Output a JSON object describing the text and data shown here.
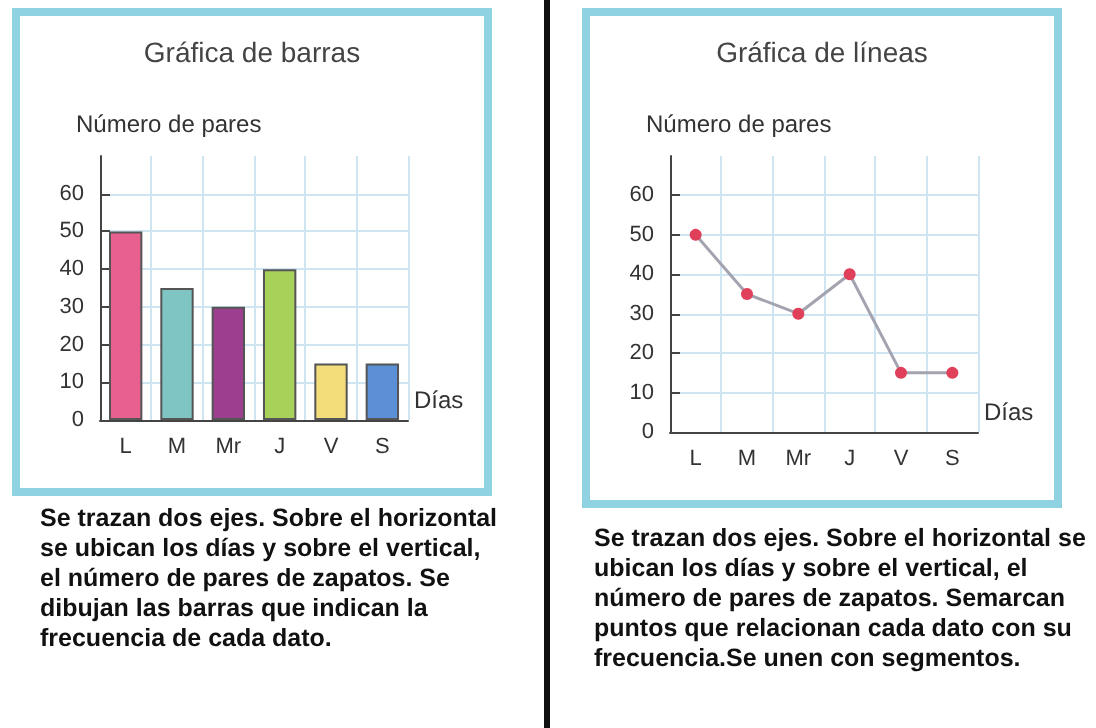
{
  "chart_data": [
    {
      "type": "bar",
      "title": "Gráfica de barras",
      "xlabel": "Días",
      "ylabel": "Número de pares",
      "categories": [
        "L",
        "M",
        "Mr",
        "J",
        "V",
        "S"
      ],
      "series": [
        {
          "values": [
            50,
            35,
            30,
            40,
            15,
            15
          ],
          "colors": [
            "#e8608f",
            "#7fc5c3",
            "#9c3f8e",
            "#a8d15a",
            "#f3dc7a",
            "#5b8fd6"
          ]
        }
      ],
      "ylim": [
        0,
        70
      ],
      "yticks": [
        0,
        10,
        20,
        30,
        40,
        50,
        60
      ],
      "grid": true,
      "annotations": [
        "Se trazan dos ejes. Sobre el horizontal se ubican los días y sobre el vertical, el número de pares de zapatos. Se dibujan las barras que indican la frecuencia de cada dato."
      ]
    },
    {
      "type": "line",
      "title": "Gráfica de líneas",
      "xlabel": "Días",
      "ylabel": "Número de pares",
      "categories": [
        "L",
        "M",
        "Mr",
        "J",
        "V",
        "S"
      ],
      "series": [
        {
          "values": [
            50,
            35,
            30,
            40,
            15,
            15
          ],
          "color": "#a3a3b0",
          "colors": [
            "#e0405a",
            "#e0405a",
            "#e0405a",
            "#e0405a",
            "#e0405a",
            "#e0405a"
          ]
        }
      ],
      "ylim": [
        0,
        70
      ],
      "yticks": [
        0,
        10,
        20,
        30,
        40,
        50,
        60
      ],
      "grid": true,
      "marker": "circle",
      "annotations": [
        "Se trazan dos ejes. Sobre el horizontal se ubican los días y sobre el vertical, el número de pares de zapatos. Semarcan puntos que relacionan cada dato con su frecuencia.Se unen con segmentos."
      ]
    }
  ]
}
